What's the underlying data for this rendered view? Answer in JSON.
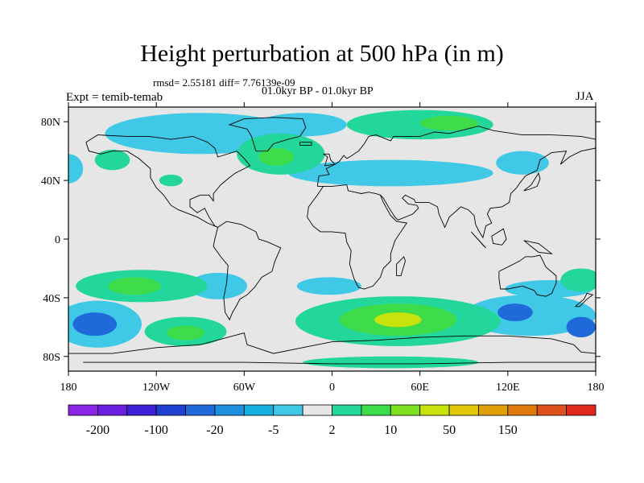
{
  "header": {
    "title": "Height perturbation at 500 hPa (in m)",
    "stats": "rmsd= 2.55181 diff= 7.76139e-09",
    "period": "01.0kyr BP - 01.0kyr BP",
    "experiment": "Expt = temib-temab",
    "season": "JJA"
  },
  "chart_data": {
    "type": "heatmap",
    "title": "Height perturbation at 500 hPa (in m)",
    "xlabel": "",
    "ylabel": "",
    "xlim": [
      -180,
      180
    ],
    "ylim": [
      -90,
      90
    ],
    "x_ticks": [
      {
        "value": -180,
        "label": "180"
      },
      {
        "value": -120,
        "label": "120W"
      },
      {
        "value": -60,
        "label": "60W"
      },
      {
        "value": 0,
        "label": "0"
      },
      {
        "value": 60,
        "label": "60E"
      },
      {
        "value": 120,
        "label": "120E"
      },
      {
        "value": 180,
        "label": "180"
      }
    ],
    "y_ticks": [
      {
        "value": 80,
        "label": "80N"
      },
      {
        "value": 40,
        "label": "40N"
      },
      {
        "value": 0,
        "label": "0"
      },
      {
        "value": -40,
        "label": "40S"
      },
      {
        "value": -80,
        "label": "80S"
      }
    ],
    "colorbar": {
      "colors": [
        "#8b25e8",
        "#6a1ee0",
        "#3c1fd6",
        "#1f3fd0",
        "#1f6ad8",
        "#1d8fdf",
        "#16b0e0",
        "#3fc9e6",
        "#e6e6e6",
        "#22d69c",
        "#3cdc4a",
        "#7fe01f",
        "#c8e30c",
        "#e0c808",
        "#e0a00a",
        "#e07a0c",
        "#e0501a",
        "#e0281e"
      ],
      "tick_labels": [
        "-200",
        "-100",
        "-20",
        "-5",
        "2",
        "10",
        "50",
        "150"
      ]
    },
    "regions": [
      {
        "level": -20,
        "lon": -95,
        "lat": 76,
        "rlon": 38,
        "rlat": 9
      },
      {
        "level": -5,
        "lon": -90,
        "lat": 72,
        "rlon": 65,
        "rlat": 14
      },
      {
        "level": -5,
        "lon": -20,
        "lat": 78,
        "rlon": 30,
        "rlat": 8
      },
      {
        "level": -5,
        "lon": 40,
        "lat": 45,
        "rlon": 70,
        "rlat": 9
      },
      {
        "level": -5,
        "lon": 130,
        "lat": 52,
        "rlon": 18,
        "rlat": 8
      },
      {
        "level": -5,
        "lon": -180,
        "lat": 48,
        "rlon": 10,
        "rlat": 10
      },
      {
        "level": -5,
        "lon": -78,
        "lat": -32,
        "rlon": 20,
        "rlat": 9
      },
      {
        "level": -5,
        "lon": -2,
        "lat": -32,
        "rlon": 22,
        "rlat": 6
      },
      {
        "level": -5,
        "lon": 148,
        "lat": -34,
        "rlon": 30,
        "rlat": 6
      },
      {
        "level": -5,
        "lon": 135,
        "lat": -52,
        "rlon": 45,
        "rlat": 14
      },
      {
        "level": -5,
        "lon": -160,
        "lat": -58,
        "rlon": 30,
        "rlat": 16
      },
      {
        "level": -20,
        "lon": -162,
        "lat": -58,
        "rlon": 15,
        "rlat": 8
      },
      {
        "level": -20,
        "lon": 125,
        "lat": -50,
        "rlon": 12,
        "rlat": 6
      },
      {
        "level": -20,
        "lon": 170,
        "lat": -60,
        "rlon": 10,
        "rlat": 7
      },
      {
        "level": 2,
        "lon": -35,
        "lat": 58,
        "rlon": 30,
        "rlat": 14
      },
      {
        "level": 10,
        "lon": -38,
        "lat": 56,
        "rlon": 12,
        "rlat": 6
      },
      {
        "level": 2,
        "lon": 60,
        "lat": 78,
        "rlon": 50,
        "rlat": 10
      },
      {
        "level": 10,
        "lon": 80,
        "lat": 79,
        "rlon": 20,
        "rlat": 5
      },
      {
        "level": 2,
        "lon": -150,
        "lat": 54,
        "rlon": 12,
        "rlat": 7
      },
      {
        "level": 2,
        "lon": -110,
        "lat": 40,
        "rlon": 8,
        "rlat": 4
      },
      {
        "level": 2,
        "lon": -130,
        "lat": -32,
        "rlon": 45,
        "rlat": 11
      },
      {
        "level": 10,
        "lon": -135,
        "lat": -32,
        "rlon": 18,
        "rlat": 6
      },
      {
        "level": 2,
        "lon": -100,
        "lat": -63,
        "rlon": 28,
        "rlat": 10
      },
      {
        "level": 10,
        "lon": -100,
        "lat": -64,
        "rlon": 13,
        "rlat": 5
      },
      {
        "level": 2,
        "lon": 45,
        "lat": -56,
        "rlon": 70,
        "rlat": 17
      },
      {
        "level": 10,
        "lon": 45,
        "lat": -55,
        "rlon": 40,
        "rlat": 11
      },
      {
        "level": 50,
        "lon": 45,
        "lat": -55,
        "rlon": 16,
        "rlat": 5
      },
      {
        "level": 2,
        "lon": 170,
        "lat": -28,
        "rlon": 14,
        "rlat": 8
      },
      {
        "level": 2,
        "lon": 40,
        "lat": -84,
        "rlon": 60,
        "rlat": 4
      }
    ]
  }
}
